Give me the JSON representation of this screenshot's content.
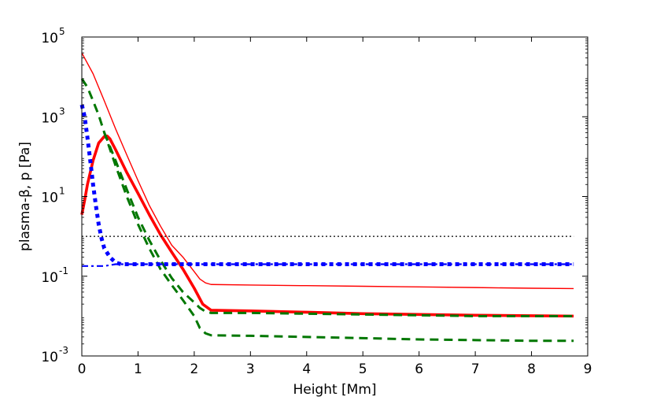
{
  "chart_data": {
    "type": "line",
    "xlabel": "Height [Mm]",
    "ylabel": "plasma-β, p [Pa]",
    "xlim": [
      0,
      9
    ],
    "ylim": [
      0.001,
      100000
    ],
    "yscale": "log",
    "xticks": [
      0,
      1,
      2,
      3,
      4,
      5,
      6,
      7,
      8,
      9
    ],
    "xtick_labels": [
      "0",
      "1",
      "2",
      "3",
      "4",
      "5",
      "6",
      "7",
      "8",
      "9"
    ],
    "yticks": [
      0.001,
      0.1,
      10,
      1000,
      100000
    ],
    "ytick_labels": [
      {
        "base": "10",
        "exp": "-3"
      },
      {
        "base": "10",
        "exp": "-1"
      },
      {
        "base": "10",
        "exp": "1"
      },
      {
        "base": "10",
        "exp": "3"
      },
      {
        "base": "10",
        "exp": "5"
      }
    ],
    "grid": false,
    "series": [
      {
        "style": "thin-solid",
        "color": "#ff0000",
        "x": [
          0.0,
          0.2,
          0.4,
          0.6,
          0.8,
          1.0,
          1.2,
          1.4,
          1.6,
          1.8,
          2.0,
          2.1,
          2.2,
          2.3,
          3.0,
          4.0,
          5.0,
          6.0,
          7.0,
          8.0,
          8.75
        ],
        "y": [
          40000,
          12000,
          2500,
          500,
          110,
          25,
          6,
          1.8,
          0.6,
          0.3,
          0.13,
          0.085,
          0.068,
          0.062,
          0.06,
          0.058,
          0.056,
          0.054,
          0.052,
          0.05,
          0.049
        ]
      },
      {
        "style": "thick-solid",
        "color": "#ff0000",
        "x": [
          0.0,
          0.05,
          0.1,
          0.2,
          0.3,
          0.4,
          0.45,
          0.5,
          0.6,
          0.8,
          1.0,
          1.2,
          1.4,
          1.6,
          1.8,
          2.0,
          2.15,
          2.3,
          3.0,
          4.0,
          5.0,
          6.0,
          7.0,
          8.0,
          8.75
        ],
        "y": [
          3.5,
          8,
          20,
          80,
          220,
          320,
          330,
          280,
          150,
          40,
          12,
          3.5,
          1.1,
          0.4,
          0.15,
          0.05,
          0.02,
          0.014,
          0.0135,
          0.0125,
          0.0115,
          0.011,
          0.0105,
          0.0102,
          0.01
        ]
      },
      {
        "style": "dashed",
        "color": "#007700",
        "x": [
          0.0,
          0.1,
          0.2,
          0.3,
          0.4,
          0.6,
          0.8,
          1.0,
          1.2,
          1.4,
          1.6,
          1.8,
          2.0,
          2.1,
          2.2,
          2.3,
          3.0,
          4.0,
          5.0,
          6.0,
          7.0,
          8.0,
          8.75
        ],
        "y": [
          9000,
          5500,
          2500,
          1100,
          400,
          60,
          10,
          2,
          0.5,
          0.15,
          0.06,
          0.025,
          0.01,
          0.005,
          0.0037,
          0.0033,
          0.0032,
          0.003,
          0.0028,
          0.0026,
          0.0025,
          0.0024,
          0.0024
        ]
      },
      {
        "style": "dashed",
        "color": "#007700",
        "x": [
          0.4,
          0.6,
          0.8,
          1.0,
          1.2,
          1.4,
          1.6,
          1.8,
          2.0,
          2.1,
          2.2,
          2.3,
          3.0,
          4.0,
          5.0,
          6.0,
          7.0,
          8.0,
          8.75
        ],
        "y": [
          400,
          80,
          15,
          3,
          0.8,
          0.25,
          0.09,
          0.04,
          0.022,
          0.016,
          0.013,
          0.012,
          0.012,
          0.0115,
          0.011,
          0.0105,
          0.01,
          0.01,
          0.01
        ]
      },
      {
        "style": "dotted",
        "color": "#0000ff",
        "x": [
          0.0,
          0.05,
          0.1,
          0.15,
          0.2,
          0.25,
          0.3,
          0.35,
          0.4,
          0.5,
          0.6,
          0.7,
          0.8,
          1.0,
          2.0,
          4.0,
          6.0,
          8.0,
          8.75
        ],
        "y": [
          2000,
          1000,
          300,
          80,
          20,
          6,
          2,
          0.9,
          0.5,
          0.3,
          0.22,
          0.2,
          0.2,
          0.2,
          0.2,
          0.2,
          0.2,
          0.2,
          0.2
        ]
      },
      {
        "style": "dashdot",
        "color": "#0000ff",
        "x": [
          0.0,
          0.1,
          0.2,
          0.3,
          0.4,
          0.5,
          0.6,
          0.7,
          1.0,
          2.0,
          4.0,
          6.0,
          8.0,
          8.75
        ],
        "y": [
          0.18,
          0.18,
          0.18,
          0.18,
          0.18,
          0.19,
          0.2,
          0.2,
          0.2,
          0.2,
          0.2,
          0.2,
          0.2,
          0.2
        ]
      },
      {
        "style": "dotted-thin",
        "color": "#000000",
        "x": [
          0.0,
          8.75
        ],
        "y": [
          1,
          1
        ]
      }
    ]
  }
}
